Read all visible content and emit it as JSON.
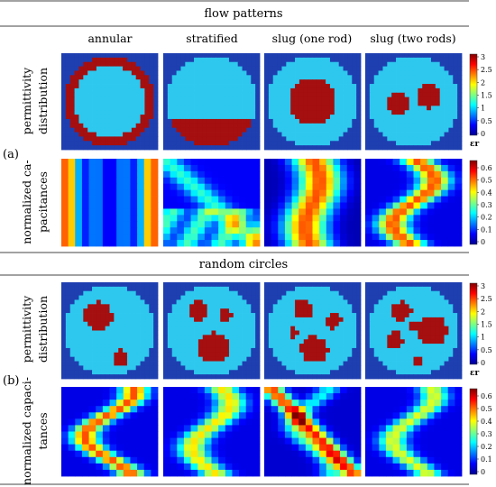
{
  "section_a": {
    "header": "flow patterns",
    "label": "(a)",
    "columns": [
      "annular",
      "stratified",
      "slug (one rod)",
      "slug (two rods)"
    ],
    "row1_label": [
      "permittivity",
      "distribution"
    ],
    "row2_label": [
      "normalized ca-",
      "pacitances"
    ],
    "colorbar1": {
      "ticks": [
        "3",
        "2.5",
        "2",
        "1.5",
        "1",
        "0.5",
        "0"
      ],
      "unit": "εr"
    },
    "colorbar2": {
      "ticks": [
        "0.6",
        "0.5",
        "0.4",
        "0.3",
        "0.2",
        "0.1",
        "0"
      ]
    }
  },
  "section_b": {
    "header": "random circles",
    "label": "(b)",
    "row1_label": [
      "permittivity",
      "distribution"
    ],
    "row2_label": [
      "normalized capaci-",
      "tances"
    ],
    "colorbar1": {
      "ticks": [
        "3",
        "2.5",
        "2",
        "1.5",
        "1",
        "0.5",
        "0"
      ],
      "unit": "εr"
    },
    "colorbar2": {
      "ticks": [
        "0.6",
        "0.5",
        "0.4",
        "0.3",
        "0.2",
        "0.1",
        "0"
      ]
    }
  },
  "colors": {
    "background_blue": "#1e3fb0",
    "permittivity_low": "#2ec8ee",
    "permittivity_high": "#a50f0f",
    "rule": "#444444"
  }
}
